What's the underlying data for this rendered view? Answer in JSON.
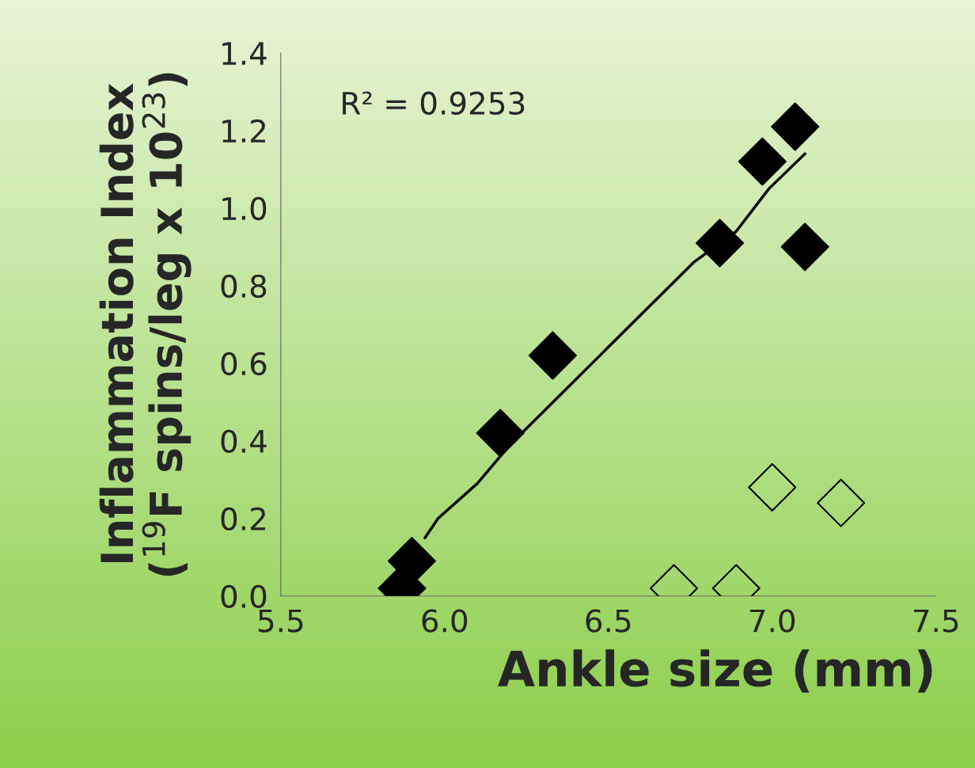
{
  "chart_data": {
    "type": "scatter",
    "xlabel": "Ankle size (mm)",
    "ylabel": "Inflammation Index\n($^{19}$F spins/leg x 10$^{23}$)",
    "annotations": [
      "R² = 0.9253"
    ],
    "xlim": [
      5.5,
      7.5
    ],
    "xticks": [
      {
        "value": 5.5,
        "label": "5.5"
      },
      {
        "value": 6.0,
        "label": "6.0"
      },
      {
        "value": 6.5,
        "label": "6.5"
      },
      {
        "value": 7.0,
        "label": "7.0"
      },
      {
        "value": 7.5,
        "label": "7.5"
      }
    ],
    "ylim": [
      0,
      1.4
    ],
    "yticks": [
      {
        "value": 0,
        "label": "0.0"
      },
      {
        "value": 0.2,
        "label": "0.2"
      },
      {
        "value": 0.4,
        "label": "0.4"
      },
      {
        "value": 0.6,
        "label": "0.6"
      },
      {
        "value": 0.8,
        "label": "0.8"
      },
      {
        "value": 1.0,
        "label": "1.0"
      },
      {
        "value": 1.2,
        "label": "1.2"
      },
      {
        "value": 1.4,
        "label": "1.4"
      }
    ],
    "grid": false,
    "legend": false,
    "series": [
      {
        "color": "#000000",
        "marker": "diamond",
        "x": [
          5.87,
          5.9,
          6.17,
          6.33,
          6.84,
          6.97,
          7.07,
          7.1
        ],
        "values": [
          0.02,
          0.09,
          0.42,
          0.62,
          0.91,
          1.12,
          1.21,
          0.9
        ]
      },
      {
        "color": "#000000",
        "marker": "diamond",
        "x": [
          6.7,
          6.89,
          7.0,
          7.21
        ],
        "values": [
          0.02,
          0.02,
          0.28,
          0.24
        ]
      },
      {
        "type": "line",
        "color": "#000000",
        "marker": "none",
        "x": [
          5.94,
          5.98,
          6.1,
          6.2,
          6.76,
          6.89,
          6.99,
          7.1
        ],
        "values": [
          0.15,
          0.2,
          0.29,
          0.39,
          0.86,
          0.94,
          1.05,
          1.14
        ]
      }
    ]
  }
}
